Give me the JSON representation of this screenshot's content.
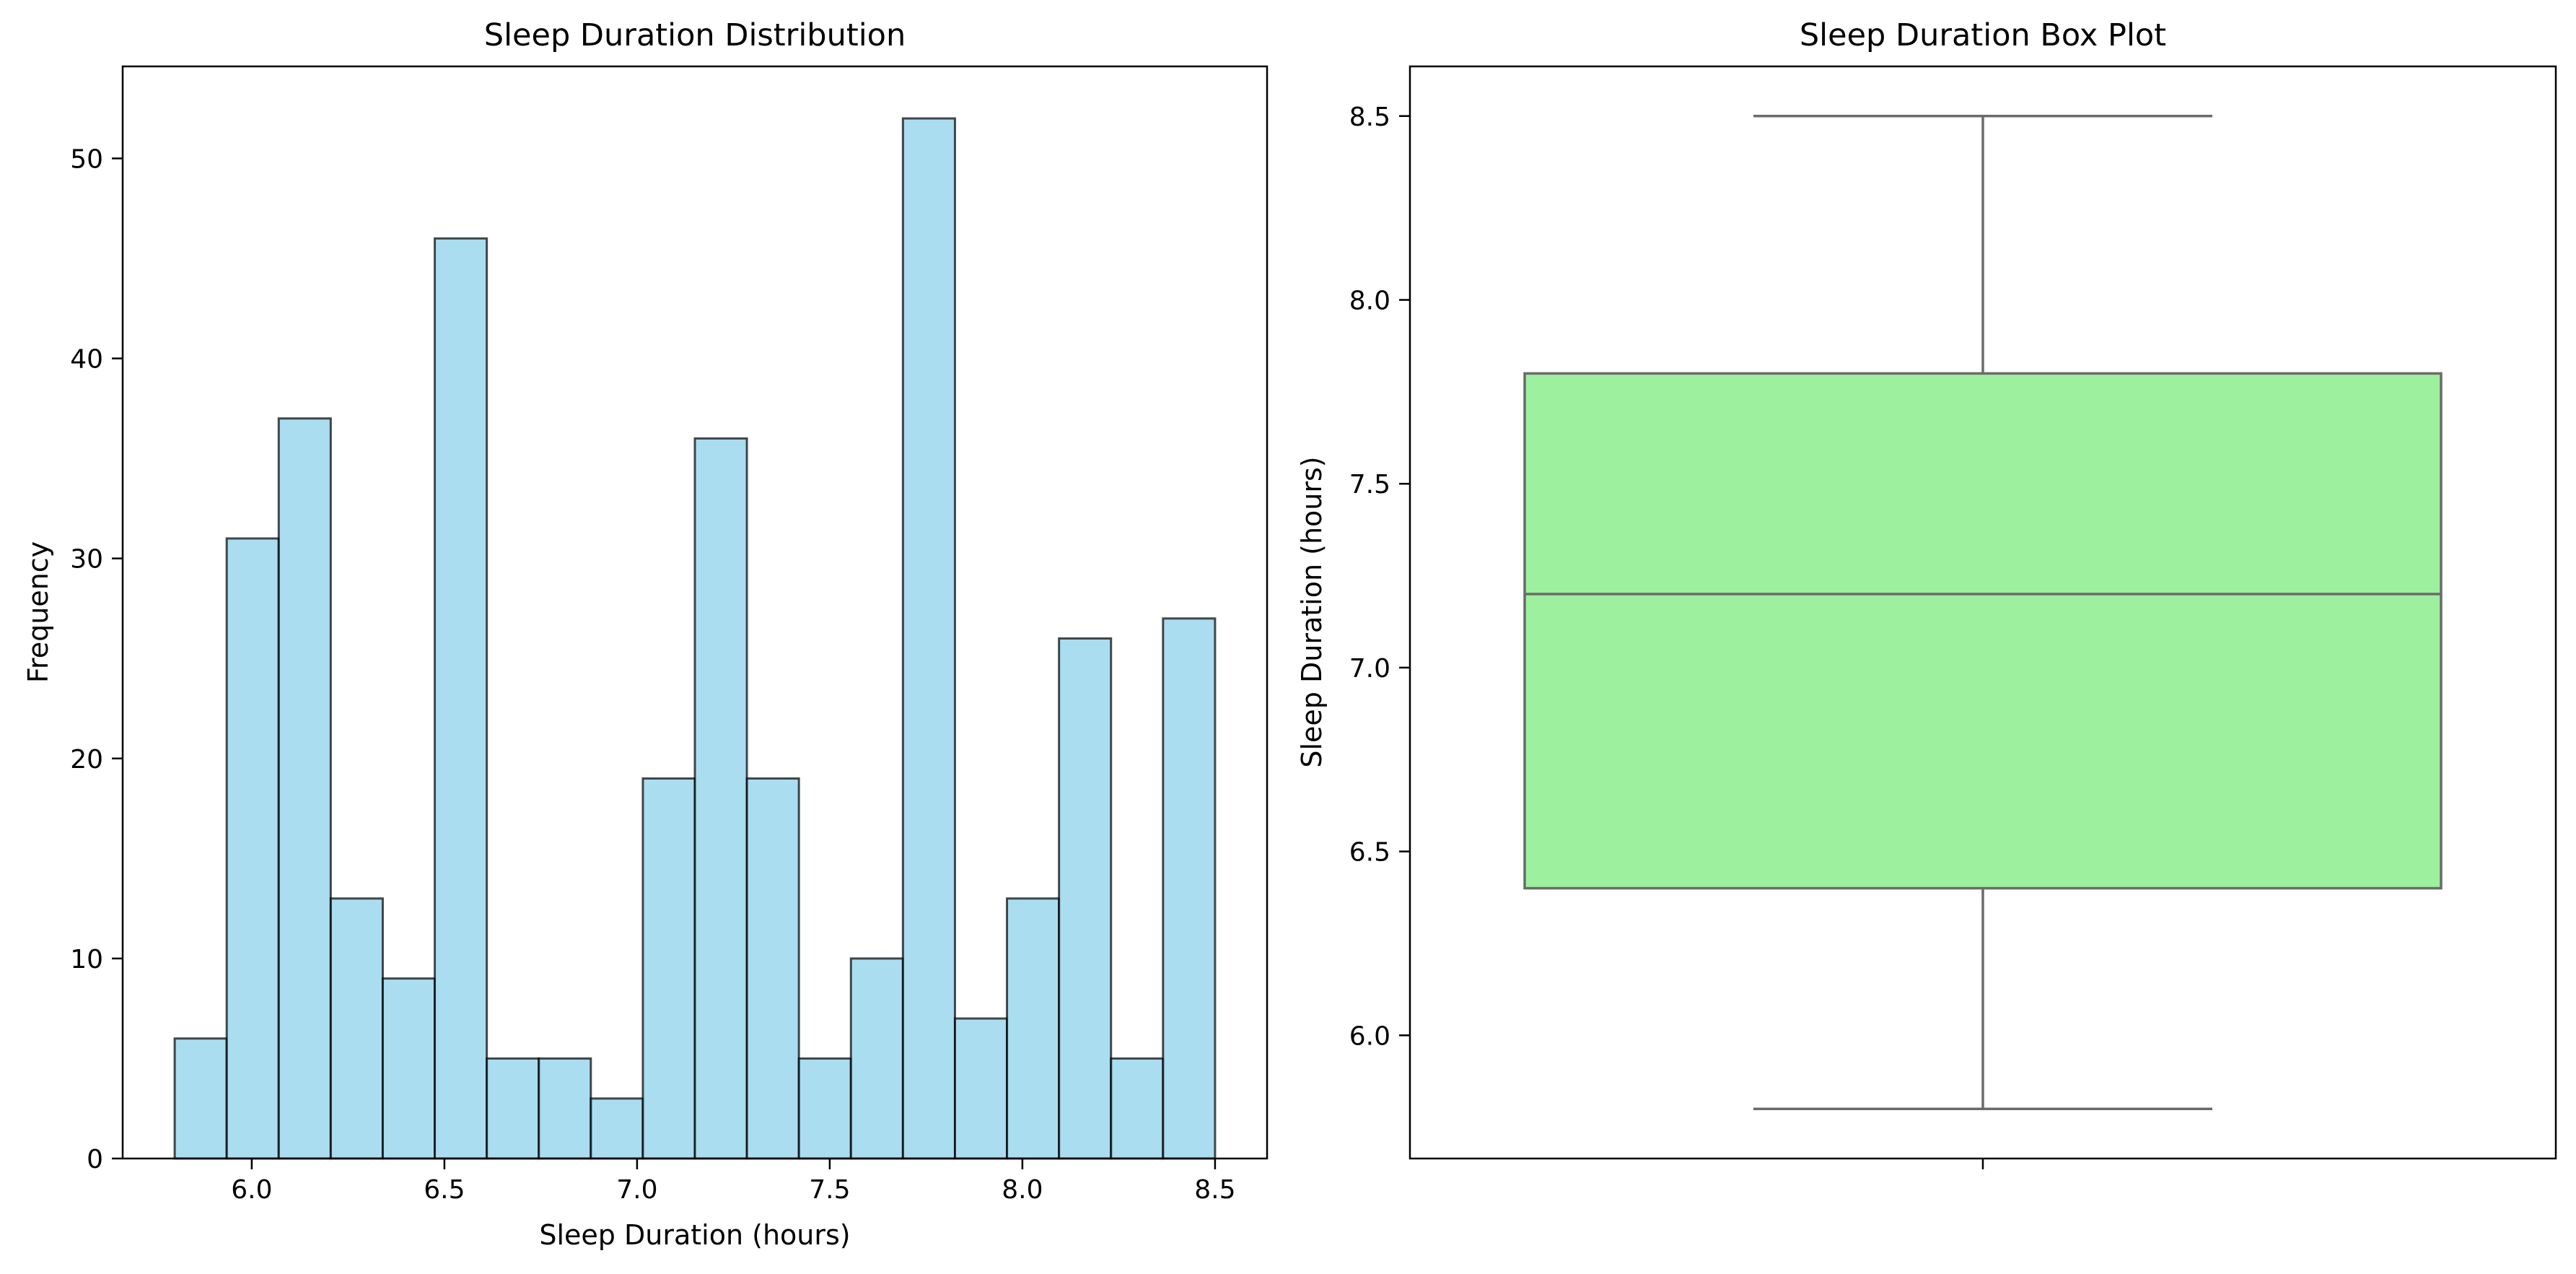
{
  "colors": {
    "histogram_fill": "#87ceeb",
    "histogram_edge": "#000000",
    "box_fill": "#90ee90",
    "box_edge": "#6b6b6b",
    "axis": "#000000"
  },
  "chart_data": [
    {
      "type": "bar",
      "subtype": "histogram",
      "title": "Sleep Duration Distribution",
      "xlabel": "Sleep Duration (hours)",
      "ylabel": "Frequency",
      "bin_edges": [
        5.8,
        5.935,
        6.07,
        6.205,
        6.34,
        6.475,
        6.61,
        6.745,
        6.88,
        7.015,
        7.15,
        7.285,
        7.42,
        7.555,
        7.69,
        7.825,
        7.96,
        8.095,
        8.23,
        8.365,
        8.5
      ],
      "values": [
        6,
        31,
        37,
        13,
        9,
        46,
        5,
        5,
        3,
        19,
        36,
        19,
        5,
        10,
        52,
        7,
        13,
        26,
        5,
        27
      ],
      "xlim": [
        5.665,
        8.635
      ],
      "ylim": [
        0,
        54.6
      ],
      "xticks": [
        6.0,
        6.5,
        7.0,
        7.5,
        8.0,
        8.5
      ],
      "xtick_labels": [
        "6.0",
        "6.5",
        "7.0",
        "7.5",
        "8.0",
        "8.5"
      ],
      "yticks": [
        0,
        10,
        20,
        30,
        40,
        50
      ],
      "ytick_labels": [
        "0",
        "10",
        "20",
        "30",
        "40",
        "50"
      ],
      "grid": false,
      "bar_opacity": 0.7
    },
    {
      "type": "box",
      "title": "Sleep Duration Box Plot",
      "xlabel": "",
      "ylabel": "Sleep Duration (hours)",
      "min": 5.8,
      "q1": 6.4,
      "median": 7.2,
      "q3": 7.8,
      "max": 8.5,
      "ylim": [
        5.665,
        8.635
      ],
      "yticks": [
        6.0,
        6.5,
        7.0,
        7.5,
        8.0,
        8.5
      ],
      "ytick_labels": [
        "6.0",
        "6.5",
        "7.0",
        "7.5",
        "8.0",
        "8.5"
      ],
      "grid": false
    }
  ]
}
